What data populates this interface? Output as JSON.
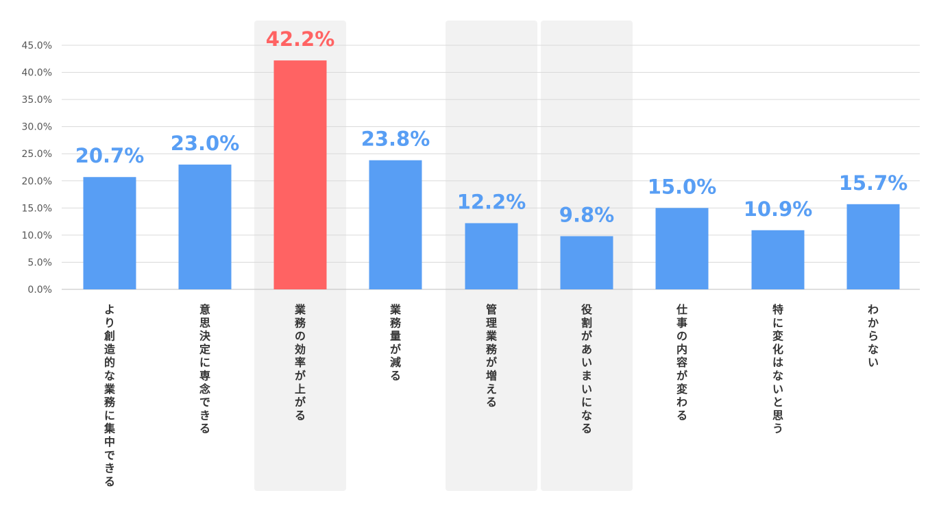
{
  "chart_data": {
    "type": "bar",
    "title": "",
    "xlabel": "",
    "ylabel": "",
    "ylim": [
      0,
      45
    ],
    "yticks": [
      "0.0%",
      "5.0%",
      "10.0%",
      "15.0%",
      "20.0%",
      "25.0%",
      "30.0%",
      "35.0%",
      "40.0%",
      "45.0%"
    ],
    "grid": true,
    "categories": [
      "より創造的な業務に集中できる",
      "意思決定に専念できる",
      "業務の効率が上がる",
      "業務量が減る",
      "管理業務が増える",
      "役割があいまいになる",
      "仕事の内容が変わる",
      "特に変化はないと思う",
      "わからない"
    ],
    "values": [
      20.7,
      23.0,
      42.2,
      23.8,
      12.2,
      9.8,
      15.0,
      10.9,
      15.7
    ],
    "value_labels": [
      "20.7%",
      "23.0%",
      "42.2%",
      "23.8%",
      "12.2%",
      "9.8%",
      "15.0%",
      "10.9%",
      "15.7%"
    ],
    "highlighted_index": 2,
    "shaded_columns": [
      2,
      4,
      5
    ],
    "colors": {
      "bar": "#589ef4",
      "highlight": "#ff6363",
      "shade": "#f2f2f2",
      "grid": "#d9d9d9"
    }
  }
}
